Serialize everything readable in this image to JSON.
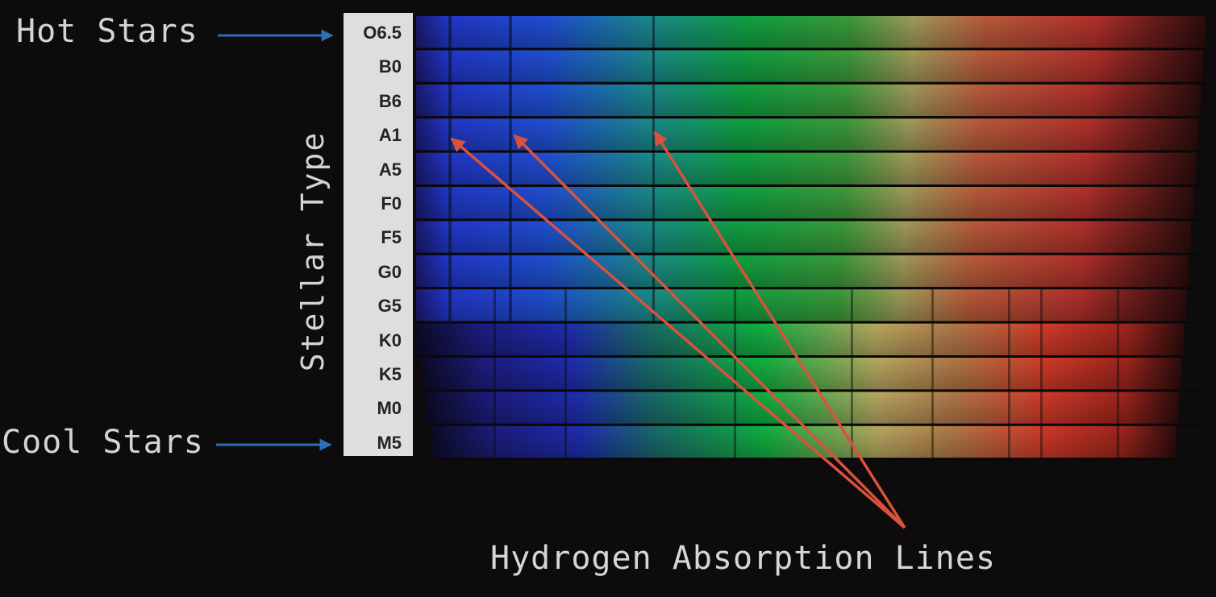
{
  "labels": {
    "hot_stars": "Hot Stars",
    "cool_stars": "Cool Stars",
    "axis_title": "Stellar Type",
    "caption": "Hydrogen Absorption Lines"
  },
  "stellar_types": [
    "O6.5",
    "B0",
    "B6",
    "A1",
    "A5",
    "F0",
    "F5",
    "G0",
    "G5",
    "K0",
    "K5",
    "M0",
    "M5"
  ],
  "colors": {
    "background": "#0d0b0b",
    "blue_arrow": "#2b6fb6",
    "red_arrow": "#d9523e",
    "label_text": "#d4d4d4",
    "strip_bg": "#dedede"
  }
}
